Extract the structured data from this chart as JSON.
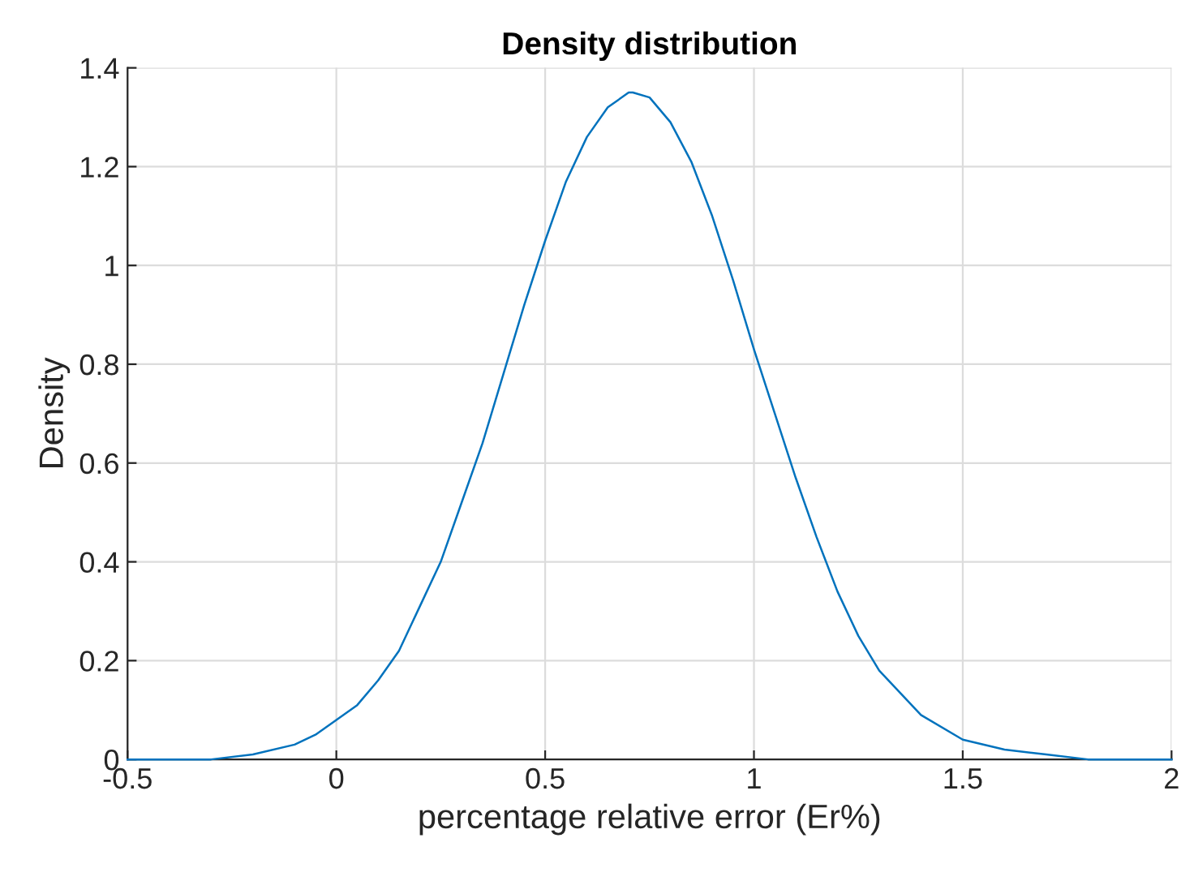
{
  "chart_data": {
    "type": "line",
    "title": "Density distribution",
    "xlabel": "percentage relative error (Er%)",
    "ylabel": "Density",
    "series": [
      {
        "color": "#0072bd",
        "x": [
          -0.5,
          -0.4,
          -0.3,
          -0.2,
          -0.1,
          -0.05,
          0,
          0.05,
          0.1,
          0.15,
          0.2,
          0.25,
          0.3,
          0.35,
          0.4,
          0.45,
          0.5,
          0.55,
          0.6,
          0.65,
          0.7,
          0.71,
          0.75,
          0.8,
          0.85,
          0.9,
          0.95,
          1.0,
          1.05,
          1.1,
          1.15,
          1.2,
          1.25,
          1.3,
          1.4,
          1.5,
          1.6,
          1.7,
          1.8,
          1.9,
          2.0
        ],
        "values": [
          0,
          0,
          0,
          0.01,
          0.03,
          0.05,
          0.08,
          0.11,
          0.16,
          0.22,
          0.31,
          0.4,
          0.52,
          0.64,
          0.78,
          0.92,
          1.05,
          1.17,
          1.26,
          1.32,
          1.35,
          1.35,
          1.34,
          1.29,
          1.21,
          1.1,
          0.97,
          0.83,
          0.7,
          0.57,
          0.45,
          0.34,
          0.25,
          0.18,
          0.09,
          0.04,
          0.02,
          0.01,
          0,
          0,
          0
        ]
      }
    ],
    "xlim": [
      -0.5,
      2
    ],
    "xticks": [
      {
        "value": -0.5,
        "label": "-0.5"
      },
      0,
      0.5,
      1,
      1.5,
      2
    ],
    "ylim": [
      0,
      1.4
    ],
    "yticks": [
      0,
      0.2,
      0.4,
      0.6,
      0.8,
      1,
      1.2,
      1.4
    ],
    "grid": true,
    "marker": "none",
    "line_style": "solid"
  }
}
